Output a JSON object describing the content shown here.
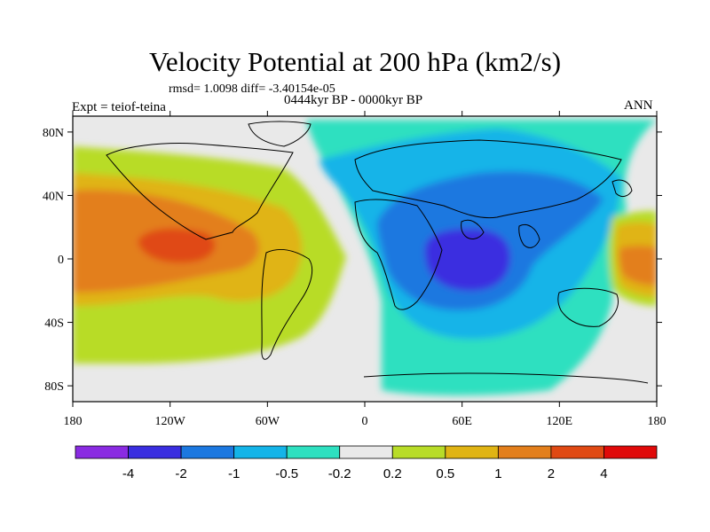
{
  "title": "Velocity Potential at 200 hPa (km2/s)",
  "stats": "rmsd= 1.0098 diff= -3.40154e-05",
  "period": "0444kyr BP - 0000kyr BP",
  "experiment": "Expt = teiof-teina",
  "season": "ANN",
  "lat_ticks": [
    {
      "label": "80N",
      "lat": 80
    },
    {
      "label": "40N",
      "lat": 40
    },
    {
      "label": "0",
      "lat": 0
    },
    {
      "label": "40S",
      "lat": -40
    },
    {
      "label": "80S",
      "lat": -80
    }
  ],
  "lon_ticks": [
    {
      "label": "180",
      "lon": -180
    },
    {
      "label": "120W",
      "lon": -120
    },
    {
      "label": "60W",
      "lon": -60
    },
    {
      "label": "0",
      "lon": 0
    },
    {
      "label": "60E",
      "lon": 60
    },
    {
      "label": "120E",
      "lon": 120
    },
    {
      "label": "180",
      "lon": 180
    }
  ],
  "colorbar": {
    "colors": [
      "#8a2be2",
      "#3a2ee0",
      "#1c78e0",
      "#14b4e8",
      "#2ee0c0",
      "#e9e9e9",
      "#b8dc28",
      "#e0b414",
      "#e37f1c",
      "#e04a14",
      "#e00a0a"
    ],
    "labels": [
      "-4",
      "-2",
      "-1",
      "-0.5",
      "-0.2",
      "0.2",
      "0.5",
      "1",
      "2",
      "4"
    ]
  }
}
